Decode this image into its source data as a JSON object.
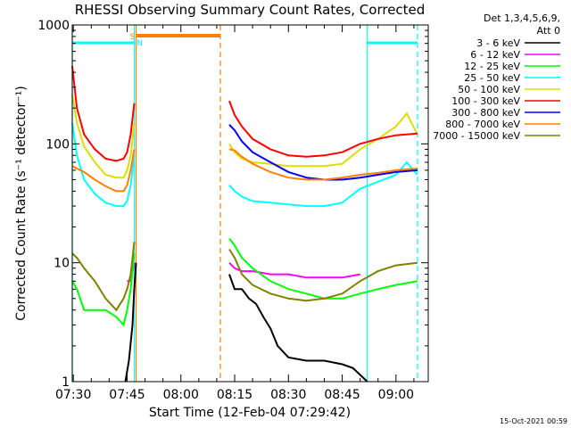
{
  "chart_data": {
    "type": "line",
    "title": "RHESSI Observing Summary Count Rates, Corrected",
    "ylabel": "Corrected Count Rate (s⁻¹ detector⁻¹)",
    "xlabel": "Start Time (12-Feb-04 07:29:42)",
    "footer": "15-Oct-2021 00:59",
    "yscale": "log",
    "ylim": [
      1,
      1000
    ],
    "xlim": [
      "07:29:42",
      "09:09:00"
    ],
    "y_ticks": [
      {
        "value": 1,
        "label": "1"
      },
      {
        "value": 10,
        "label": "10"
      },
      {
        "value": 100,
        "label": "100"
      },
      {
        "value": 1000,
        "label": "1000"
      }
    ],
    "x_ticks": [
      {
        "value": "07:30",
        "label": "07:30"
      },
      {
        "value": "07:45",
        "label": "07:45"
      },
      {
        "value": "08:00",
        "label": "08:00"
      },
      {
        "value": "08:15",
        "label": "08:15"
      },
      {
        "value": "08:30",
        "label": "08:30"
      },
      {
        "value": "08:45",
        "label": "08:45"
      },
      {
        "value": "09:00",
        "label": "09:00"
      }
    ],
    "legend": {
      "title_lines": [
        "Det 1,3,4,5,6,9,",
        "Att 0"
      ],
      "placement": "right"
    },
    "series": [
      {
        "name": "3 - 6 keV",
        "color": "#000000",
        "segments": [
          [
            [
              "07:44:30",
              1.0
            ],
            [
              "07:45:30",
              1.5
            ],
            [
              "07:46:30",
              3.0
            ],
            [
              "07:47:00",
              6.0
            ],
            [
              "07:47:30",
              10.0
            ]
          ],
          [
            [
              "08:13:30",
              8.0
            ],
            [
              "08:15:00",
              6.0
            ],
            [
              "08:17:00",
              6.0
            ],
            [
              "08:19:00",
              5.0
            ],
            [
              "08:21:00",
              4.5
            ],
            [
              "08:23:00",
              3.5
            ],
            [
              "08:25:00",
              2.8
            ],
            [
              "08:27:00",
              2.0
            ],
            [
              "08:30:00",
              1.6
            ],
            [
              "08:35:00",
              1.5
            ],
            [
              "08:40:00",
              1.5
            ],
            [
              "08:45:00",
              1.4
            ],
            [
              "08:48:00",
              1.3
            ],
            [
              "08:52:00",
              1.0
            ]
          ]
        ]
      },
      {
        "name": "6 - 12 keV",
        "color": "#ff00ff",
        "segments": [
          [
            [
              "07:45:00",
              7.0
            ],
            [
              "07:46:00",
              7.0
            ],
            [
              "07:47:00",
              10.0
            ]
          ],
          [
            [
              "08:13:30",
              10.0
            ],
            [
              "08:15:00",
              9.0
            ],
            [
              "08:17:00",
              8.5
            ],
            [
              "08:20:00",
              8.5
            ],
            [
              "08:25:00",
              8.0
            ],
            [
              "08:30:00",
              8.0
            ],
            [
              "08:35:00",
              7.5
            ],
            [
              "08:40:00",
              7.5
            ],
            [
              "08:45:00",
              7.5
            ],
            [
              "08:50:00",
              8.0
            ]
          ]
        ]
      },
      {
        "name": "12 - 25 keV",
        "color": "#00ff00",
        "segments": [
          [
            [
              "07:29:42",
              7.0
            ],
            [
              "07:31:00",
              6.0
            ],
            [
              "07:33:00",
              4.0
            ],
            [
              "07:36:00",
              4.0
            ],
            [
              "07:39:00",
              4.0
            ],
            [
              "07:42:00",
              3.5
            ],
            [
              "07:44:00",
              3.0
            ],
            [
              "07:45:00",
              4.0
            ],
            [
              "07:46:00",
              6.0
            ],
            [
              "07:47:00",
              12.0
            ]
          ],
          [
            [
              "08:13:30",
              16.0
            ],
            [
              "08:15:00",
              14.0
            ],
            [
              "08:17:00",
              11.0
            ],
            [
              "08:20:00",
              9.0
            ],
            [
              "08:25:00",
              7.0
            ],
            [
              "08:30:00",
              6.0
            ],
            [
              "08:35:00",
              5.5
            ],
            [
              "08:40:00",
              5.0
            ],
            [
              "08:45:00",
              5.0
            ],
            [
              "08:50:00",
              5.5
            ],
            [
              "08:55:00",
              6.0
            ],
            [
              "09:00:00",
              6.5
            ],
            [
              "09:06:00",
              7.0
            ]
          ]
        ]
      },
      {
        "name": "25 - 50 keV",
        "color": "#00ffff",
        "segments": [
          [
            [
              "07:29:42",
              150.0
            ],
            [
              "07:31:00",
              80.0
            ],
            [
              "07:33:00",
              50.0
            ],
            [
              "07:36:00",
              38.0
            ],
            [
              "07:39:00",
              32.0
            ],
            [
              "07:42:00",
              30.0
            ],
            [
              "07:44:00",
              30.0
            ],
            [
              "07:45:00",
              33.0
            ],
            [
              "07:46:00",
              45.0
            ],
            [
              "07:47:00",
              80.0
            ]
          ],
          [
            [
              "08:13:30",
              45.0
            ],
            [
              "08:15:00",
              40.0
            ],
            [
              "08:17:00",
              36.0
            ],
            [
              "08:20:00",
              33.0
            ],
            [
              "08:25:00",
              32.0
            ],
            [
              "08:30:00",
              31.0
            ],
            [
              "08:35:00",
              30.0
            ],
            [
              "08:40:00",
              30.0
            ],
            [
              "08:45:00",
              32.0
            ],
            [
              "08:50:00",
              42.0
            ],
            [
              "08:55:00",
              48.0
            ],
            [
              "09:00:00",
              55.0
            ],
            [
              "09:03:00",
              70.0
            ],
            [
              "09:06:00",
              55.0
            ]
          ]
        ]
      },
      {
        "name": "50 - 100 keV",
        "color": "#dddd00",
        "segments": [
          [
            [
              "07:29:42",
              260.0
            ],
            [
              "07:31:00",
              150.0
            ],
            [
              "07:33:00",
              95.0
            ],
            [
              "07:36:00",
              70.0
            ],
            [
              "07:39:00",
              55.0
            ],
            [
              "07:42:00",
              52.0
            ],
            [
              "07:44:00",
              52.0
            ],
            [
              "07:45:00",
              60.0
            ],
            [
              "07:46:00",
              80.0
            ],
            [
              "07:47:00",
              150.0
            ]
          ],
          [
            [
              "08:13:30",
              100.0
            ],
            [
              "08:15:00",
              85.0
            ],
            [
              "08:17:00",
              75.0
            ],
            [
              "08:20:00",
              70.0
            ],
            [
              "08:25:00",
              68.0
            ],
            [
              "08:30:00",
              65.0
            ],
            [
              "08:35:00",
              65.0
            ],
            [
              "08:40:00",
              65.0
            ],
            [
              "08:45:00",
              68.0
            ],
            [
              "08:50:00",
              90.0
            ],
            [
              "08:55:00",
              110.0
            ],
            [
              "09:00:00",
              140.0
            ],
            [
              "09:03:00",
              180.0
            ],
            [
              "09:06:00",
              120.0
            ]
          ]
        ]
      },
      {
        "name": "100 - 300 keV",
        "color": "#ff0000",
        "segments": [
          [
            [
              "07:29:42",
              450.0
            ],
            [
              "07:31:00",
              200.0
            ],
            [
              "07:33:00",
              120.0
            ],
            [
              "07:36:00",
              90.0
            ],
            [
              "07:39:00",
              75.0
            ],
            [
              "07:42:00",
              72.0
            ],
            [
              "07:44:00",
              75.0
            ],
            [
              "07:45:00",
              85.0
            ],
            [
              "07:46:00",
              120.0
            ],
            [
              "07:47:00",
              220.0
            ]
          ],
          [
            [
              "08:13:30",
              230.0
            ],
            [
              "08:15:00",
              175.0
            ],
            [
              "08:17:00",
              140.0
            ],
            [
              "08:20:00",
              110.0
            ],
            [
              "08:25:00",
              90.0
            ],
            [
              "08:30:00",
              80.0
            ],
            [
              "08:35:00",
              78.0
            ],
            [
              "08:40:00",
              80.0
            ],
            [
              "08:45:00",
              85.0
            ],
            [
              "08:50:00",
              100.0
            ],
            [
              "08:55:00",
              110.0
            ],
            [
              "09:00:00",
              118.0
            ],
            [
              "09:06:00",
              122.0
            ]
          ]
        ]
      },
      {
        "name": "300 - 800 keV",
        "color": "#0000ff",
        "segments": [
          [
            [
              "08:13:30",
              145.0
            ],
            [
              "08:15:00",
              130.0
            ],
            [
              "08:17:00",
              105.0
            ],
            [
              "08:20:00",
              85.0
            ],
            [
              "08:25:00",
              70.0
            ],
            [
              "08:30:00",
              58.0
            ],
            [
              "08:35:00",
              52.0
            ],
            [
              "08:40:00",
              50.0
            ],
            [
              "08:45:00",
              50.0
            ],
            [
              "08:50:00",
              52.0
            ],
            [
              "08:55:00",
              55.0
            ],
            [
              "09:00:00",
              58.0
            ],
            [
              "09:06:00",
              60.0
            ]
          ]
        ]
      },
      {
        "name": "800 - 7000 keV",
        "color": "#ff8000",
        "segments": [
          [
            [
              "07:29:42",
              65.0
            ],
            [
              "07:31:00",
              62.0
            ],
            [
              "07:33:00",
              58.0
            ],
            [
              "07:36:00",
              50.0
            ],
            [
              "07:39:00",
              44.0
            ],
            [
              "07:42:00",
              40.0
            ],
            [
              "07:44:00",
              40.0
            ],
            [
              "07:45:00",
              45.0
            ],
            [
              "07:46:00",
              60.0
            ],
            [
              "07:47:00",
              90.0
            ]
          ],
          [
            [
              "08:13:30",
              90.0
            ],
            [
              "08:15:00",
              88.0
            ],
            [
              "08:17:00",
              78.0
            ],
            [
              "08:20:00",
              68.0
            ],
            [
              "08:25:00",
              58.0
            ],
            [
              "08:30:00",
              52.0
            ],
            [
              "08:35:00",
              50.0
            ],
            [
              "08:40:00",
              50.0
            ],
            [
              "08:45:00",
              52.0
            ],
            [
              "08:50:00",
              55.0
            ],
            [
              "08:55:00",
              57.0
            ],
            [
              "09:00:00",
              60.0
            ],
            [
              "09:06:00",
              62.0
            ]
          ]
        ]
      },
      {
        "name": "7000 - 15000 keV",
        "color": "#808000",
        "segments": [
          [
            [
              "07:29:42",
              12.0
            ],
            [
              "07:31:00",
              11.0
            ],
            [
              "07:33:00",
              9.0
            ],
            [
              "07:36:00",
              7.0
            ],
            [
              "07:39:00",
              5.0
            ],
            [
              "07:42:00",
              4.0
            ],
            [
              "07:44:00",
              5.0
            ],
            [
              "07:45:00",
              6.0
            ],
            [
              "07:46:00",
              8.0
            ],
            [
              "07:47:00",
              15.0
            ]
          ],
          [
            [
              "08:13:30",
              13.0
            ],
            [
              "08:15:00",
              11.0
            ],
            [
              "08:17:00",
              8.0
            ],
            [
              "08:20:00",
              6.5
            ],
            [
              "08:25:00",
              5.5
            ],
            [
              "08:30:00",
              5.0
            ],
            [
              "08:35:00",
              4.8
            ],
            [
              "08:40:00",
              5.0
            ],
            [
              "08:45:00",
              5.5
            ],
            [
              "08:50:00",
              7.0
            ],
            [
              "08:55:00",
              8.5
            ],
            [
              "09:00:00",
              9.5
            ],
            [
              "09:06:00",
              10.0
            ]
          ]
        ]
      }
    ],
    "orbit_markers": {
      "night_bars": [
        {
          "color": "#00ffff",
          "start": "07:29:42",
          "end": "07:47:00"
        },
        {
          "color": "#00ffff",
          "start": "08:52:00",
          "end": "09:06:00"
        }
      ],
      "saa_bar": {
        "color": "#ff8000",
        "start": "07:47:30",
        "end": "08:11:00"
      },
      "vlines": [
        {
          "time": "07:29:42",
          "color": "#00ffff",
          "dashed": false
        },
        {
          "time": "07:47:00",
          "color": "#00ffff",
          "dashed": false
        },
        {
          "time": "07:47:30",
          "color": "#ff8000",
          "dashed": false
        },
        {
          "time": "08:11:00",
          "color": "#ff8000",
          "dashed": true
        },
        {
          "time": "08:52:00",
          "color": "#00ffff",
          "dashed": false
        },
        {
          "time": "09:06:00",
          "color": "#00ffff",
          "dashed": true
        }
      ],
      "labels": [
        {
          "text": "S",
          "color": "#ff8000",
          "time": "07:46:30"
        },
        {
          "text": "N",
          "color": "#00ffff",
          "time": "07:48:30"
        }
      ]
    }
  }
}
